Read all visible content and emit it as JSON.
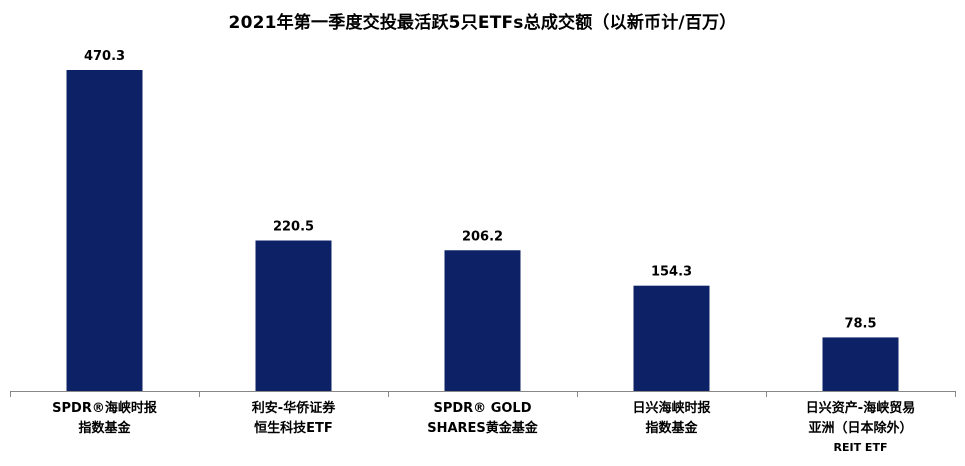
{
  "chart_data": {
    "type": "bar",
    "title": "2021年第一季度交投最活跃5只ETFs总成交额（以新币计/百万）",
    "categories": [
      [
        "SPDR®海峡时报",
        "指数基金"
      ],
      [
        "利安-华侨证券",
        "恒生科技ETF"
      ],
      [
        "SPDR® GOLD",
        "SHARES黄金基金"
      ],
      [
        "日兴海峡时报",
        "指数基金"
      ],
      [
        "日兴资产-海峡贸易",
        "亚洲（日本除外）",
        "REIT ETF"
      ]
    ],
    "values": [
      470.3,
      220.5,
      206.2,
      154.3,
      78.5
    ],
    "value_labels": [
      "470.3",
      "220.5",
      "206.2",
      "154.3",
      "78.5"
    ],
    "ylim": [
      0,
      470.3
    ],
    "grid": false,
    "legend": "none",
    "bar_color": "#0D2266",
    "axis_color": "#888888"
  }
}
